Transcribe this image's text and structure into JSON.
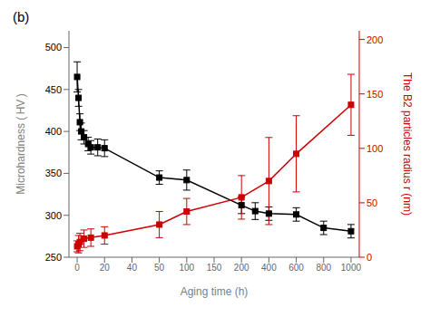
{
  "chart_data": {
    "type": "line",
    "annotation": "(b)",
    "x_label": "Aging time (h)",
    "y_label": "Microhardness ( HV )",
    "y2_label": "The B2 particles radius r (nm)",
    "xlim": [
      -6,
      1060
    ],
    "xticks": [
      0,
      20,
      40,
      50,
      100,
      150,
      200,
      400,
      600,
      800,
      1000
    ],
    "ylim": [
      250,
      520
    ],
    "yticks": [
      250,
      300,
      350,
      400,
      450,
      500
    ],
    "y2lim": [
      0,
      208
    ],
    "y2ticks": [
      0,
      50,
      100,
      150,
      200
    ],
    "grid": false,
    "marker": "square",
    "line_style": "solid",
    "series": [
      {
        "color": "#000000",
        "x": [
          0,
          1,
          2,
          3,
          5,
          8,
          10,
          15,
          20,
          50,
          100,
          200,
          300,
          400,
          600,
          800,
          1000
        ],
        "values": [
          465,
          440,
          411,
          400,
          393,
          385,
          381,
          381,
          380,
          345,
          342,
          312,
          305,
          302,
          301,
          285,
          281
        ],
        "errors": [
          18,
          10,
          10,
          10,
          8,
          8,
          8,
          10,
          10,
          8,
          12,
          10,
          10,
          8,
          8,
          8,
          8
        ]
      },
      {
        "color": "#cc0000",
        "axis": "y2",
        "x": [
          0,
          1,
          2,
          5,
          10,
          20,
          50,
          100,
          200,
          400,
          600,
          1000
        ],
        "values": [
          10,
          12,
          14,
          17,
          18,
          20,
          30,
          42,
          55,
          70,
          95,
          140
        ],
        "errors": [
          5,
          8,
          8,
          8,
          8,
          8,
          12,
          12,
          20,
          40,
          35,
          28
        ]
      }
    ]
  }
}
